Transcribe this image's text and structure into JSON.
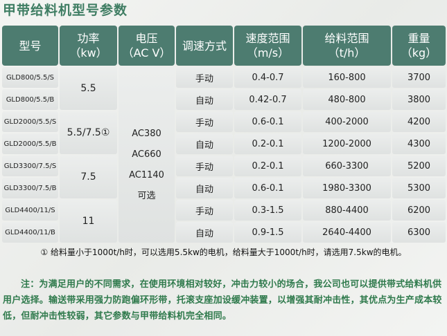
{
  "title": "甲带给料机型号参数",
  "colors": {
    "header_bg": "#4d7c70",
    "title": "#3f7d63",
    "note": "#2f7a4c"
  },
  "headers": [
    "型号",
    "功率\n（kw）",
    "电压\n（AC V）",
    "调速方式",
    "速度范围\n（m/s）",
    "给料范围\n（t/h）",
    "重量\n（kg）"
  ],
  "voltage": "AC380\nAC660\nAC1140\n可选",
  "power": [
    "5.5",
    "5.5/7.5①",
    "7.5",
    "11"
  ],
  "rows": [
    [
      "GLD800/5.5/S",
      "手动",
      "0.4-0.7",
      "160-800",
      "3700"
    ],
    [
      "GLD800/5.5/B",
      "自动",
      "0.42-0.7",
      "480-800",
      "3800"
    ],
    [
      "GLD2000/5.5/S",
      "手动",
      "0.6-0.1",
      "400-2000",
      "4200"
    ],
    [
      "GLD2000/5.5/B",
      "自动",
      "0.2-0.1",
      "1200-2000",
      "4300"
    ],
    [
      "GLD3300/7.5/S",
      "手动",
      "0.2-0.1",
      "660-3300",
      "5200"
    ],
    [
      "GLD3300/7.5/B",
      "自动",
      "0.6-0.1",
      "1980-3300",
      "5300"
    ],
    [
      "GLD4400/11/S",
      "手动",
      "0.3-1.5",
      "880-4400",
      "6200"
    ],
    [
      "GLD4400/11/B",
      "自动",
      "0.9-1.5",
      "2640-4400",
      "6300"
    ]
  ],
  "footnote": "① 给料量小于1000t/h时，可以选用5.5kw的电机，给料量大于1000t/h时，请选用7.5kw的电机。",
  "note": "注：为满足用户的不同需求，在使用环境相对较好，冲击力较小的场合，我公司也可以提供带式给料机供用户选择。输送带采用强力防跑偏环形带，托滚支座加设缓冲装置，以增强其耐冲击性，其优点为生产成本较低，但耐冲击性较弱，其它参数与甲带给料机完全相同。"
}
